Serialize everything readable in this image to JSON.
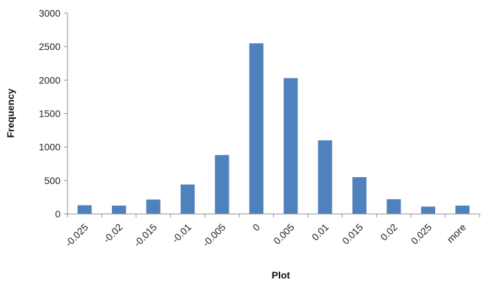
{
  "chart_data": {
    "type": "bar",
    "title": "",
    "xlabel": "Plot",
    "ylabel": "Frequency",
    "categories": [
      "-0.025",
      "-0.02",
      "-0.015",
      "-0.01",
      "-0.005",
      "0",
      "0.005",
      "0.01",
      "0.015",
      "0.02",
      "0.025",
      "more"
    ],
    "values": [
      130,
      125,
      215,
      440,
      880,
      2550,
      2030,
      1100,
      550,
      220,
      110,
      125
    ],
    "ylim": [
      0,
      3000
    ],
    "yticks": [
      0,
      500,
      1000,
      1500,
      2000,
      2500,
      3000
    ],
    "grid": false,
    "legend": "none",
    "bar_color": "#4f81bd"
  }
}
